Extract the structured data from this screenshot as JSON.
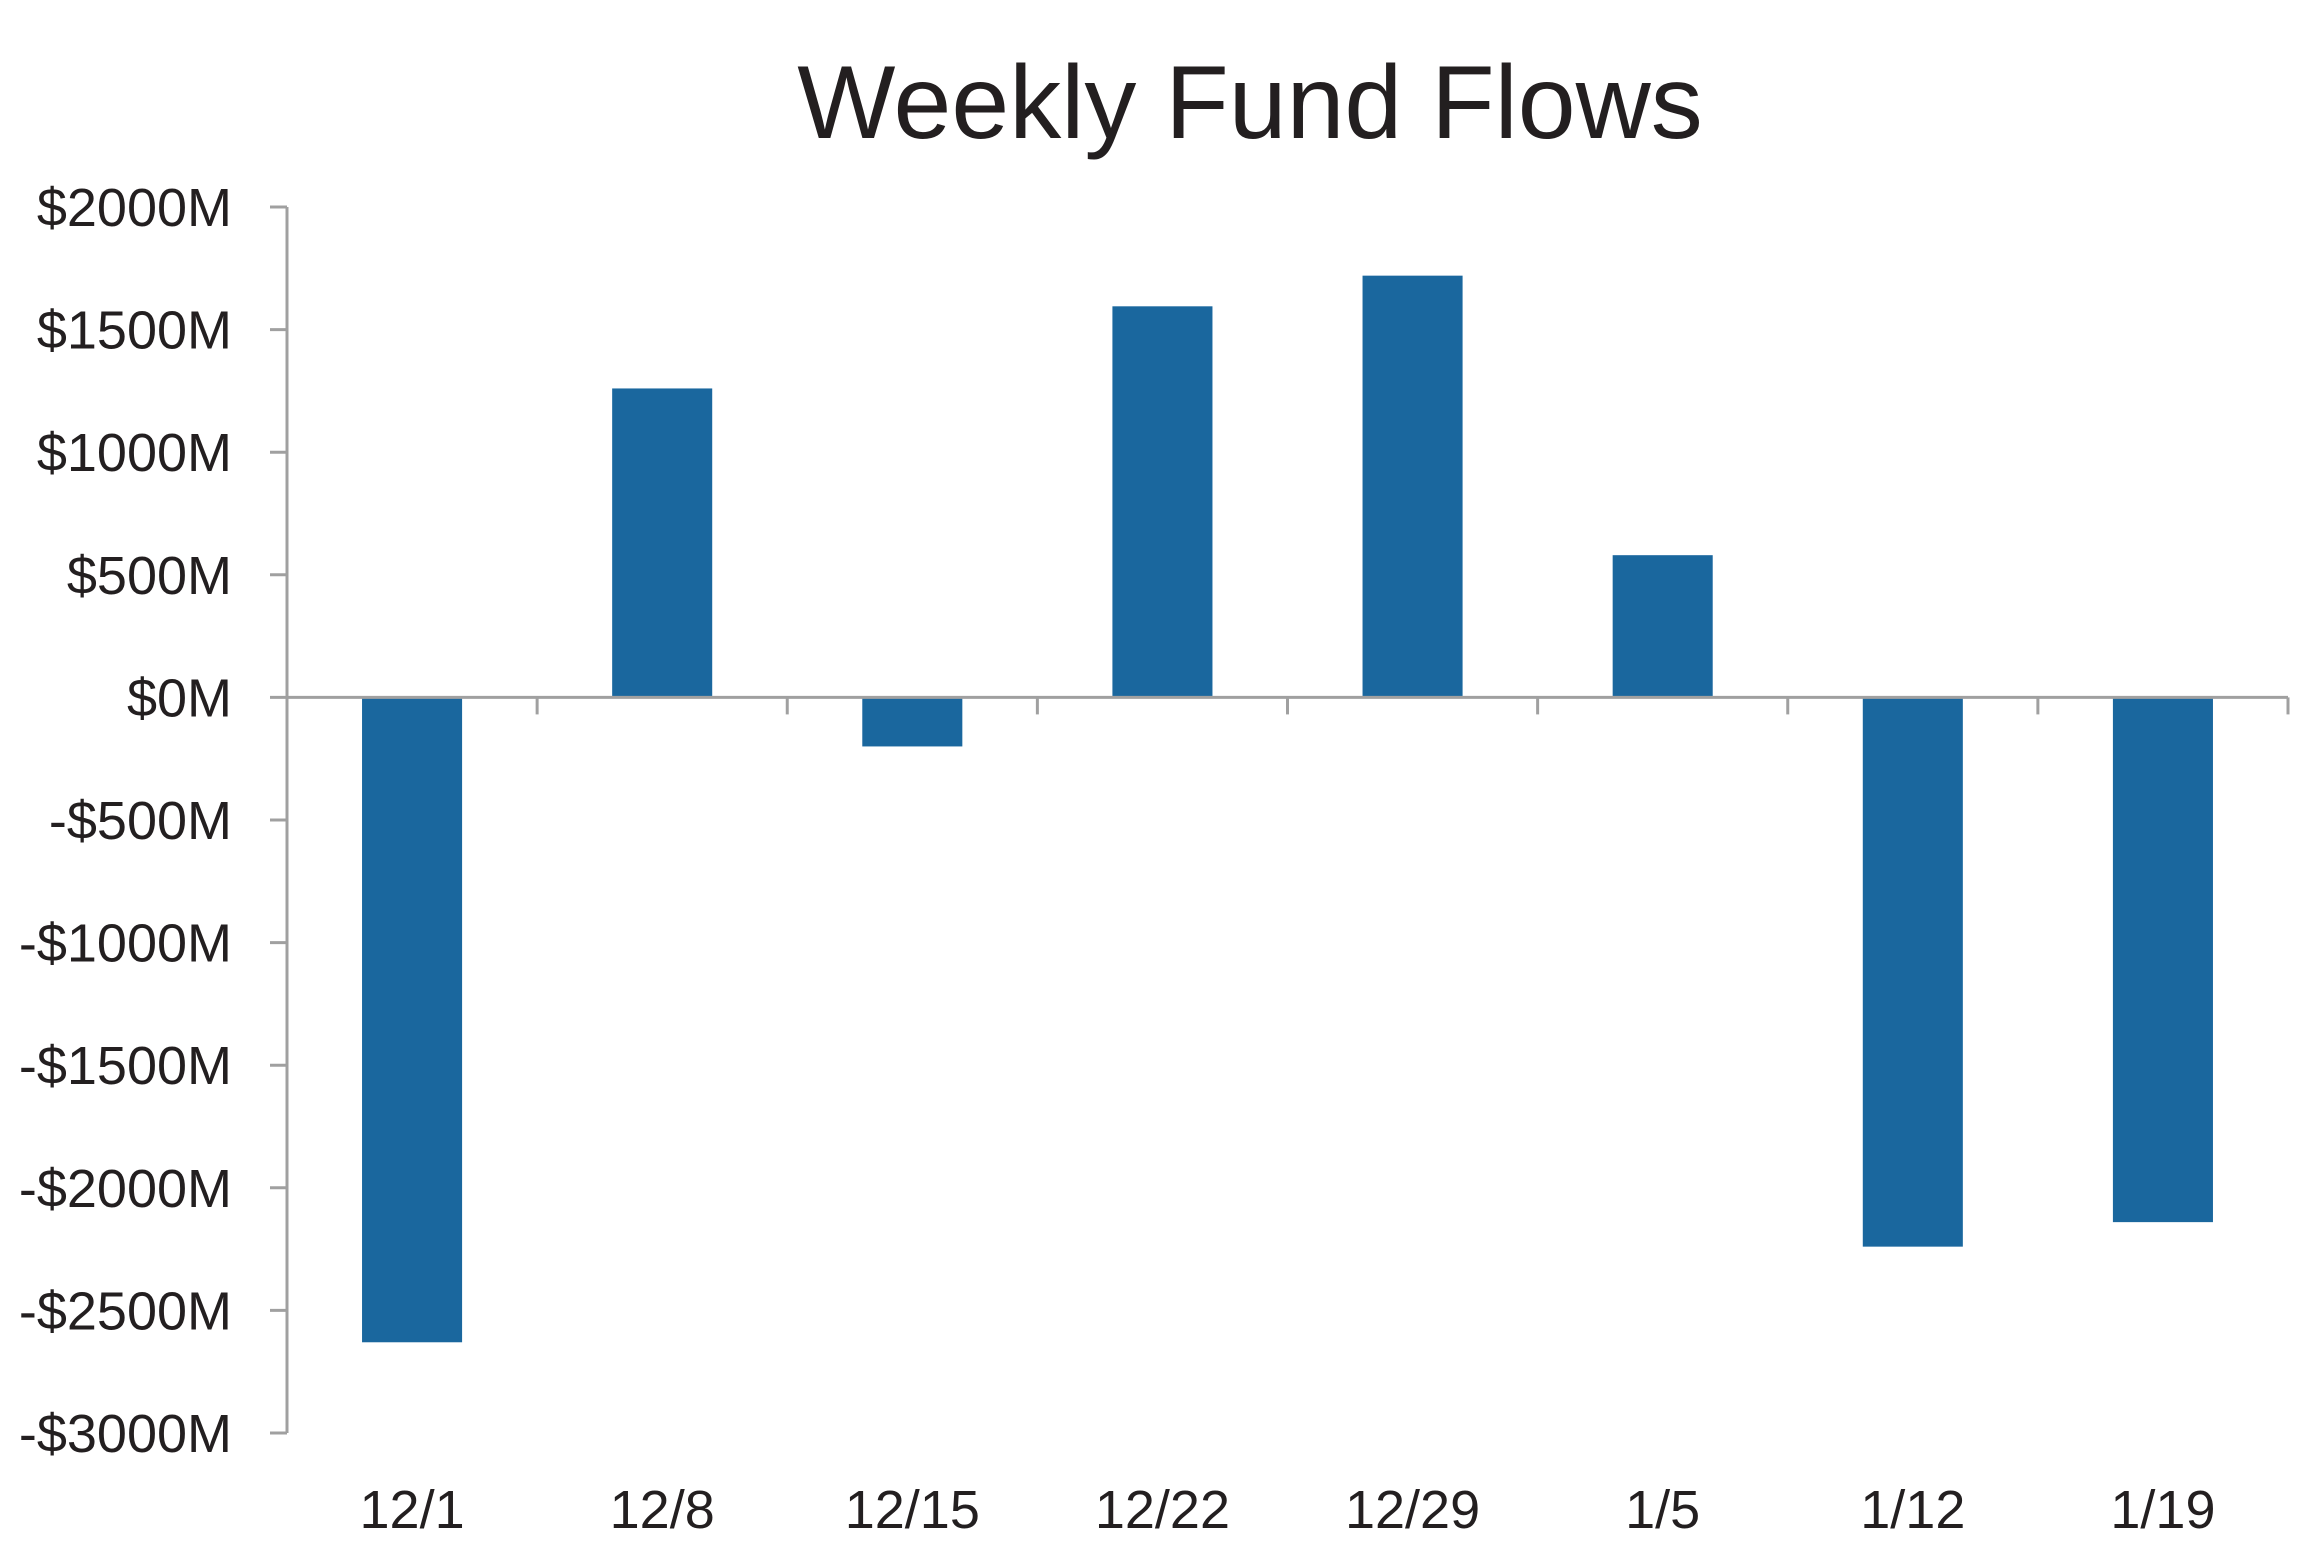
{
  "chart_data": {
    "type": "bar",
    "title": "Weekly Fund Flows",
    "xlabel": "",
    "ylabel": "",
    "categories": [
      "12/1",
      "12/8",
      "12/15",
      "12/22",
      "12/29",
      "1/5",
      "1/12",
      "1/19"
    ],
    "values": [
      -2630,
      1260,
      -200,
      1595,
      1720,
      580,
      -2240,
      -2140
    ],
    "ylim": [
      -3000,
      2000
    ],
    "yticks": [
      2000,
      1500,
      1000,
      500,
      0,
      -500,
      -1000,
      -1500,
      -2000,
      -2500,
      -3000
    ],
    "ytick_labels": [
      "$2000M",
      "$1500M",
      "$1000M",
      "$500M",
      "$0M",
      "-$500M",
      "-$1000M",
      "-$1500M",
      "-$2000M",
      "-$2500M",
      "-$3000M"
    ],
    "grid": false,
    "legend": "none",
    "colors": {
      "bar": "#1a679e",
      "axis": "#a0a0a0",
      "text": "#231f20"
    }
  }
}
